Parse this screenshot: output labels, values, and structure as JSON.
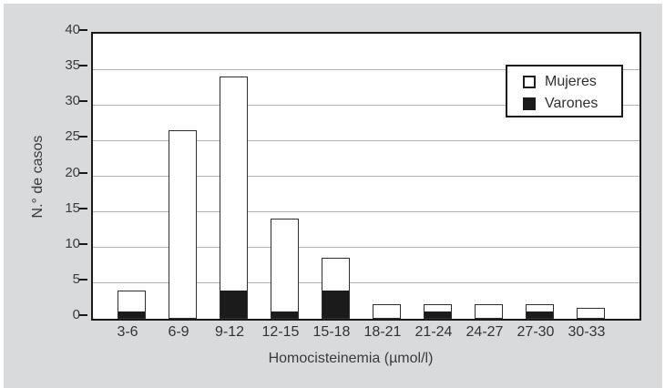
{
  "chart_data": {
    "type": "bar",
    "stacked": true,
    "title": "",
    "xlabel": "Homocisteinemia (µmol/l)",
    "ylabel": "N.° de casos",
    "categories": [
      "3-6",
      "6-9",
      "9-12",
      "12-15",
      "15-18",
      "18-21",
      "21-24",
      "24-27",
      "27-30",
      "30-33"
    ],
    "series": [
      {
        "name": "Varones",
        "color": "#1b1b1b",
        "values": [
          1,
          0,
          4,
          1,
          4,
          0,
          1,
          0,
          1,
          0
        ]
      },
      {
        "name": "Mujeres",
        "color": "#ffffff",
        "values": [
          3,
          26.5,
          30,
          13,
          4.5,
          2,
          1,
          2,
          1,
          1.5
        ]
      }
    ],
    "totals": [
      4,
      26.5,
      34,
      14,
      8.5,
      2,
      2,
      2,
      2,
      1.5
    ],
    "ylim": [
      0,
      40
    ],
    "yticks": [
      0,
      5,
      10,
      15,
      20,
      25,
      30,
      35,
      40
    ],
    "grid": true,
    "legend_position": "top-right"
  },
  "legend": {
    "items": [
      {
        "label": "Mujeres",
        "swatch": "white-square-icon"
      },
      {
        "label": "Varones",
        "swatch": "black-square-icon"
      }
    ]
  },
  "colors": {
    "panel_background": "#d9dadb",
    "plot_background": "#ffffff",
    "axis": "#1a1a1a",
    "gridline": "#b3b3b3",
    "text": "#3b3b3b",
    "bar_border": "#2e2e2e",
    "varones_fill": "#1b1b1b",
    "mujeres_fill": "#ffffff"
  }
}
